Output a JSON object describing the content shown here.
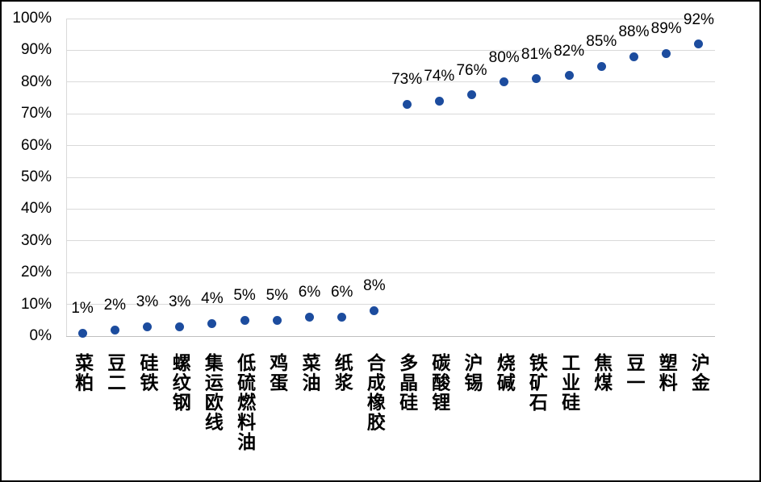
{
  "chart_data": {
    "type": "scatter",
    "title": "",
    "xlabel": "",
    "ylabel": "",
    "legend": "none",
    "grid": "horizontal",
    "ylim": [
      0,
      100
    ],
    "y_ticks": [
      "100%",
      "90%",
      "80%",
      "70%",
      "60%",
      "50%",
      "40%",
      "30%",
      "20%",
      "10%",
      "0%"
    ],
    "categories": [
      "菜粕",
      "豆二",
      "硅铁",
      "螺纹钢",
      "集运欧线",
      "低硫燃料油",
      "鸡蛋",
      "菜油",
      "纸浆",
      "合成橡胶",
      "多晶硅",
      "碳酸锂",
      "沪锡",
      "烧碱",
      "铁矿石",
      "工业硅",
      "焦煤",
      "豆一",
      "塑料",
      "沪金"
    ],
    "values": [
      1,
      2,
      3,
      3,
      4,
      5,
      5,
      6,
      6,
      8,
      73,
      74,
      76,
      80,
      81,
      82,
      85,
      88,
      89,
      92
    ],
    "data_labels": [
      "1%",
      "2%",
      "3%",
      "3%",
      "4%",
      "5%",
      "5%",
      "6%",
      "6%",
      "8%",
      "73%",
      "74%",
      "76%",
      "80%",
      "81%",
      "82%",
      "85%",
      "88%",
      "89%",
      "92%"
    ],
    "marker_color": "#1c4c9e",
    "gridline_color": "#d9d9d9",
    "axis_line_color": "#bfbfbf",
    "label_color": "#000000",
    "border_color": "#000000",
    "background": "#ffffff"
  }
}
